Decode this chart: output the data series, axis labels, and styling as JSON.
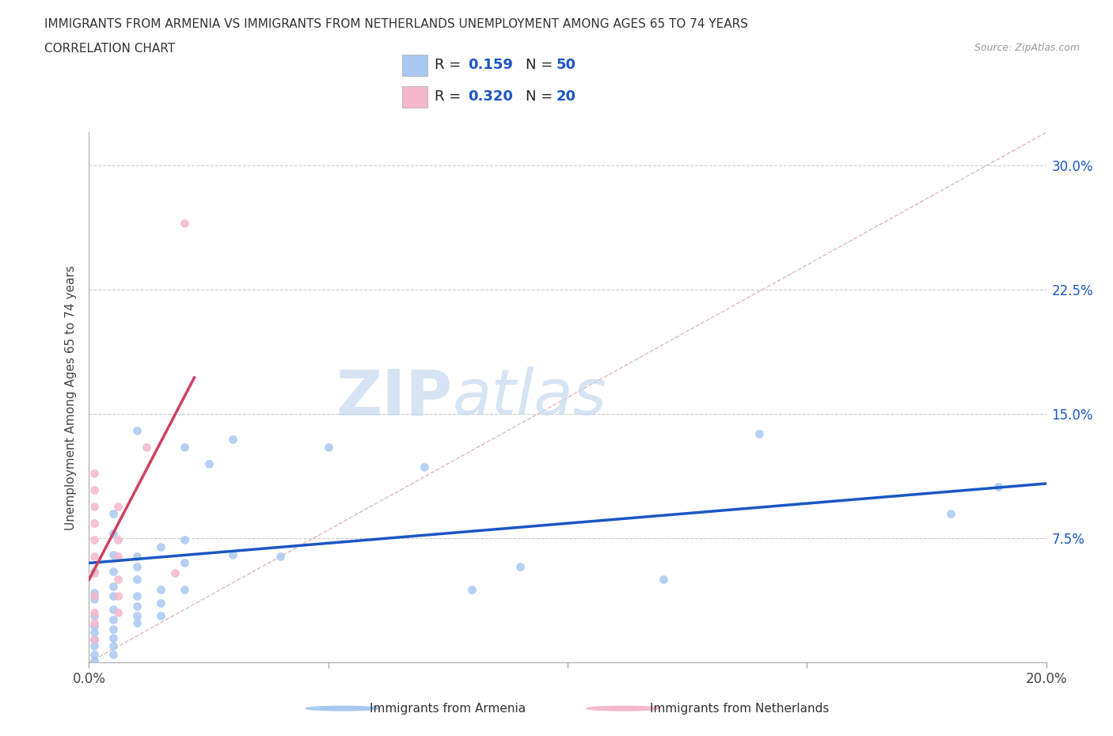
{
  "title_line1": "IMMIGRANTS FROM ARMENIA VS IMMIGRANTS FROM NETHERLANDS UNEMPLOYMENT AMONG AGES 65 TO 74 YEARS",
  "title_line2": "CORRELATION CHART",
  "source": "Source: ZipAtlas.com",
  "ylabel": "Unemployment Among Ages 65 to 74 years",
  "xlim": [
    0.0,
    0.2
  ],
  "ylim": [
    0.0,
    0.32
  ],
  "armenia_color": "#a8c8f0",
  "netherlands_color": "#f4b8cc",
  "armenia_R": 0.159,
  "armenia_N": 50,
  "netherlands_R": 0.32,
  "netherlands_N": 20,
  "trend_line_armenia_color": "#1a56c4",
  "trend_line_netherlands_color": "#d04060",
  "diagonal_color": "#d8b8b8",
  "watermark_zip": "ZIP",
  "watermark_atlas": "atlas",
  "armenia_scatter": [
    [
      0.001,
      0.055
    ],
    [
      0.001,
      0.042
    ],
    [
      0.001,
      0.038
    ],
    [
      0.001,
      0.028
    ],
    [
      0.001,
      0.022
    ],
    [
      0.001,
      0.018
    ],
    [
      0.001,
      0.014
    ],
    [
      0.001,
      0.01
    ],
    [
      0.001,
      0.005
    ],
    [
      0.001,
      0.001
    ],
    [
      0.005,
      0.09
    ],
    [
      0.005,
      0.078
    ],
    [
      0.005,
      0.065
    ],
    [
      0.005,
      0.055
    ],
    [
      0.005,
      0.046
    ],
    [
      0.005,
      0.04
    ],
    [
      0.005,
      0.032
    ],
    [
      0.005,
      0.026
    ],
    [
      0.005,
      0.02
    ],
    [
      0.005,
      0.015
    ],
    [
      0.005,
      0.01
    ],
    [
      0.005,
      0.005
    ],
    [
      0.01,
      0.14
    ],
    [
      0.01,
      0.064
    ],
    [
      0.01,
      0.058
    ],
    [
      0.01,
      0.05
    ],
    [
      0.01,
      0.04
    ],
    [
      0.01,
      0.034
    ],
    [
      0.01,
      0.028
    ],
    [
      0.01,
      0.024
    ],
    [
      0.015,
      0.07
    ],
    [
      0.015,
      0.044
    ],
    [
      0.015,
      0.036
    ],
    [
      0.015,
      0.028
    ],
    [
      0.02,
      0.13
    ],
    [
      0.02,
      0.074
    ],
    [
      0.02,
      0.06
    ],
    [
      0.02,
      0.044
    ],
    [
      0.025,
      0.12
    ],
    [
      0.03,
      0.135
    ],
    [
      0.03,
      0.065
    ],
    [
      0.04,
      0.064
    ],
    [
      0.05,
      0.13
    ],
    [
      0.07,
      0.118
    ],
    [
      0.08,
      0.044
    ],
    [
      0.09,
      0.058
    ],
    [
      0.12,
      0.05
    ],
    [
      0.14,
      0.138
    ],
    [
      0.18,
      0.09
    ],
    [
      0.19,
      0.106
    ]
  ],
  "netherlands_scatter": [
    [
      0.02,
      0.265
    ],
    [
      0.001,
      0.114
    ],
    [
      0.001,
      0.104
    ],
    [
      0.001,
      0.094
    ],
    [
      0.001,
      0.084
    ],
    [
      0.001,
      0.074
    ],
    [
      0.001,
      0.064
    ],
    [
      0.001,
      0.054
    ],
    [
      0.001,
      0.04
    ],
    [
      0.001,
      0.03
    ],
    [
      0.001,
      0.024
    ],
    [
      0.001,
      0.014
    ],
    [
      0.006,
      0.094
    ],
    [
      0.006,
      0.074
    ],
    [
      0.006,
      0.064
    ],
    [
      0.006,
      0.05
    ],
    [
      0.006,
      0.04
    ],
    [
      0.006,
      0.03
    ],
    [
      0.012,
      0.13
    ],
    [
      0.018,
      0.054
    ]
  ],
  "arm_trend_x": [
    0.0,
    0.2
  ],
  "arm_trend_y": [
    0.06,
    0.108
  ],
  "neth_trend_x": [
    0.0,
    0.022
  ],
  "neth_trend_y": [
    0.05,
    0.172
  ]
}
